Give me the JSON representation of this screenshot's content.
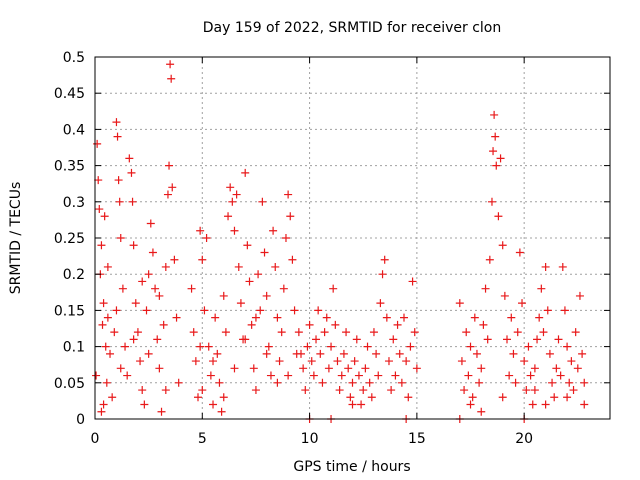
{
  "chart_data": {
    "type": "scatter",
    "title": "Day 159 of 2022, SRMTID for receiver clon",
    "xlabel": "GPS time / hours",
    "ylabel": "SRMTID / TECUs",
    "xlim": [
      0,
      24
    ],
    "ylim": [
      0,
      0.5
    ],
    "x_ticks": [
      "0",
      "5",
      "10",
      "15",
      "20"
    ],
    "y_ticks": [
      "0",
      "0.05",
      "0.1",
      "0.15",
      "0.2",
      "0.25",
      "0.3",
      "0.35",
      "0.4",
      "0.45",
      "0.5"
    ],
    "x_tick_values": [
      0,
      5,
      10,
      15,
      20
    ],
    "y_tick_values": [
      0,
      0.05,
      0.1,
      0.15,
      0.2,
      0.25,
      0.3,
      0.35,
      0.4,
      0.45,
      0.5
    ],
    "grid": true,
    "marker": "+",
    "color": "#e8191a",
    "series": [
      {
        "name": "",
        "points": [
          [
            0.05,
            0.06
          ],
          [
            0.1,
            0.38
          ],
          [
            0.15,
            0.33
          ],
          [
            0.2,
            0.29
          ],
          [
            0.25,
            0.2
          ],
          [
            0.3,
            0.24
          ],
          [
            0.35,
            0.13
          ],
          [
            0.4,
            0.16
          ],
          [
            0.45,
            0.28
          ],
          [
            0.5,
            0.1
          ],
          [
            0.55,
            0.05
          ],
          [
            0.6,
            0.14
          ],
          [
            0.7,
            0.09
          ],
          [
            0.8,
            0.03
          ],
          [
            0.9,
            0.12
          ],
          [
            1.0,
            0.41
          ],
          [
            1.05,
            0.39
          ],
          [
            1.1,
            0.33
          ],
          [
            1.15,
            0.3
          ],
          [
            1.2,
            0.25
          ],
          [
            1.3,
            0.18
          ],
          [
            1.4,
            0.1
          ],
          [
            1.5,
            0.06
          ],
          [
            1.6,
            0.36
          ],
          [
            1.7,
            0.34
          ],
          [
            1.75,
            0.3
          ],
          [
            1.8,
            0.24
          ],
          [
            1.9,
            0.16
          ],
          [
            2.0,
            0.12
          ],
          [
            2.1,
            0.08
          ],
          [
            2.2,
            0.04
          ],
          [
            2.3,
            0.02
          ],
          [
            2.4,
            0.15
          ],
          [
            2.5,
            0.2
          ],
          [
            2.6,
            0.27
          ],
          [
            2.7,
            0.23
          ],
          [
            2.8,
            0.18
          ],
          [
            2.9,
            0.11
          ],
          [
            3.0,
            0.07
          ],
          [
            3.1,
            0.01
          ],
          [
            3.2,
            0.13
          ],
          [
            3.3,
            0.21
          ],
          [
            3.4,
            0.31
          ],
          [
            3.45,
            0.35
          ],
          [
            3.5,
            0.49
          ],
          [
            3.55,
            0.47
          ],
          [
            3.6,
            0.32
          ],
          [
            3.7,
            0.22
          ],
          [
            3.8,
            0.14
          ],
          [
            3.9,
            0.05
          ],
          [
            0.3,
            0.01
          ],
          [
            0.4,
            0.02
          ],
          [
            1.2,
            0.07
          ],
          [
            1.8,
            0.11
          ],
          [
            2.5,
            0.09
          ],
          [
            3.0,
            0.17
          ],
          [
            0.6,
            0.21
          ],
          [
            1.0,
            0.15
          ],
          [
            2.2,
            0.19
          ],
          [
            3.3,
            0.04
          ],
          [
            4.5,
            0.18
          ],
          [
            4.6,
            0.12
          ],
          [
            4.7,
            0.08
          ],
          [
            4.8,
            0.03
          ],
          [
            4.9,
            0.26
          ],
          [
            5.0,
            0.22
          ],
          [
            5.1,
            0.15
          ],
          [
            5.2,
            0.25
          ],
          [
            5.3,
            0.1
          ],
          [
            5.4,
            0.06
          ],
          [
            5.5,
            0.02
          ],
          [
            5.6,
            0.14
          ],
          [
            5.7,
            0.09
          ],
          [
            5.8,
            0.05
          ],
          [
            5.9,
            0.01
          ],
          [
            6.0,
            0.17
          ],
          [
            6.1,
            0.12
          ],
          [
            6.2,
            0.28
          ],
          [
            6.3,
            0.32
          ],
          [
            6.4,
            0.3
          ],
          [
            6.5,
            0.26
          ],
          [
            6.6,
            0.31
          ],
          [
            6.7,
            0.21
          ],
          [
            6.8,
            0.16
          ],
          [
            6.9,
            0.11
          ],
          [
            7.0,
            0.34
          ],
          [
            7.1,
            0.24
          ],
          [
            7.2,
            0.19
          ],
          [
            7.3,
            0.13
          ],
          [
            7.4,
            0.07
          ],
          [
            7.5,
            0.04
          ],
          [
            7.6,
            0.2
          ],
          [
            7.7,
            0.15
          ],
          [
            7.8,
            0.3
          ],
          [
            7.9,
            0.23
          ],
          [
            8.0,
            0.17
          ],
          [
            8.1,
            0.1
          ],
          [
            8.2,
            0.06
          ],
          [
            8.3,
            0.26
          ],
          [
            8.4,
            0.21
          ],
          [
            8.5,
            0.14
          ],
          [
            8.6,
            0.08
          ],
          [
            8.7,
            0.12
          ],
          [
            8.8,
            0.18
          ],
          [
            8.9,
            0.25
          ],
          [
            9.0,
            0.31
          ],
          [
            9.1,
            0.28
          ],
          [
            9.2,
            0.22
          ],
          [
            9.3,
            0.15
          ],
          [
            9.4,
            0.09
          ],
          [
            5.0,
            0.04
          ],
          [
            5.5,
            0.08
          ],
          [
            6.0,
            0.03
          ],
          [
            6.5,
            0.07
          ],
          [
            7.0,
            0.11
          ],
          [
            7.5,
            0.14
          ],
          [
            8.0,
            0.09
          ],
          [
            8.5,
            0.05
          ],
          [
            9.0,
            0.06
          ],
          [
            4.9,
            0.1
          ],
          [
            9.5,
            0.12
          ],
          [
            9.6,
            0.09
          ],
          [
            9.7,
            0.07
          ],
          [
            9.8,
            0.04
          ],
          [
            9.9,
            0.1
          ],
          [
            10.0,
            0.13
          ],
          [
            10.1,
            0.08
          ],
          [
            10.2,
            0.06
          ],
          [
            10.3,
            0.11
          ],
          [
            10.4,
            0.15
          ],
          [
            10.5,
            0.09
          ],
          [
            10.6,
            0.05
          ],
          [
            10.7,
            0.12
          ],
          [
            10.8,
            0.14
          ],
          [
            10.9,
            0.07
          ],
          [
            11.0,
            0.1
          ],
          [
            11.1,
            0.18
          ],
          [
            11.2,
            0.13
          ],
          [
            11.3,
            0.08
          ],
          [
            11.4,
            0.04
          ],
          [
            11.5,
            0.06
          ],
          [
            11.6,
            0.09
          ],
          [
            11.7,
            0.12
          ],
          [
            11.8,
            0.07
          ],
          [
            11.9,
            0.03
          ],
          [
            12.0,
            0.05
          ],
          [
            12.1,
            0.08
          ],
          [
            12.2,
            0.11
          ],
          [
            12.3,
            0.06
          ],
          [
            12.4,
            0.02
          ],
          [
            12.5,
            0.04
          ],
          [
            12.6,
            0.07
          ],
          [
            12.7,
            0.1
          ],
          [
            12.8,
            0.05
          ],
          [
            12.9,
            0.03
          ],
          [
            13.0,
            0.12
          ],
          [
            13.1,
            0.09
          ],
          [
            13.2,
            0.06
          ],
          [
            13.3,
            0.16
          ],
          [
            13.4,
            0.2
          ],
          [
            13.5,
            0.22
          ],
          [
            13.6,
            0.14
          ],
          [
            13.7,
            0.08
          ],
          [
            13.8,
            0.04
          ],
          [
            13.9,
            0.11
          ],
          [
            14.0,
            0.06
          ],
          [
            14.1,
            0.13
          ],
          [
            14.2,
            0.09
          ],
          [
            14.3,
            0.05
          ],
          [
            14.4,
            0.14
          ],
          [
            14.5,
            0.08
          ],
          [
            14.6,
            0.03
          ],
          [
            14.7,
            0.1
          ],
          [
            14.8,
            0.19
          ],
          [
            14.9,
            0.12
          ],
          [
            15.0,
            0.07
          ],
          [
            10.0,
            0.0
          ],
          [
            11.0,
            0.0
          ],
          [
            14.5,
            0.0
          ],
          [
            12.0,
            0.02
          ],
          [
            17.0,
            0.16
          ],
          [
            17.1,
            0.08
          ],
          [
            17.2,
            0.04
          ],
          [
            17.3,
            0.12
          ],
          [
            17.4,
            0.06
          ],
          [
            17.5,
            0.1
          ],
          [
            17.6,
            0.03
          ],
          [
            17.7,
            0.14
          ],
          [
            17.8,
            0.09
          ],
          [
            17.9,
            0.05
          ],
          [
            18.0,
            0.07
          ],
          [
            18.1,
            0.13
          ],
          [
            18.2,
            0.18
          ],
          [
            18.3,
            0.11
          ],
          [
            18.4,
            0.22
          ],
          [
            18.5,
            0.3
          ],
          [
            18.55,
            0.37
          ],
          [
            18.6,
            0.42
          ],
          [
            18.65,
            0.39
          ],
          [
            18.7,
            0.35
          ],
          [
            18.8,
            0.28
          ],
          [
            18.9,
            0.36
          ],
          [
            19.0,
            0.24
          ],
          [
            19.1,
            0.17
          ],
          [
            19.2,
            0.11
          ],
          [
            19.3,
            0.06
          ],
          [
            19.4,
            0.14
          ],
          [
            19.5,
            0.09
          ],
          [
            19.6,
            0.05
          ],
          [
            19.7,
            0.12
          ],
          [
            19.8,
            0.23
          ],
          [
            19.9,
            0.16
          ],
          [
            20.0,
            0.08
          ],
          [
            20.1,
            0.04
          ],
          [
            20.2,
            0.1
          ],
          [
            20.3,
            0.06
          ],
          [
            20.4,
            0.02
          ],
          [
            20.5,
            0.07
          ],
          [
            20.6,
            0.11
          ],
          [
            20.7,
            0.14
          ],
          [
            20.8,
            0.18
          ],
          [
            20.9,
            0.12
          ],
          [
            21.0,
            0.21
          ],
          [
            21.1,
            0.15
          ],
          [
            21.2,
            0.09
          ],
          [
            21.3,
            0.05
          ],
          [
            21.4,
            0.03
          ],
          [
            21.5,
            0.07
          ],
          [
            21.6,
            0.11
          ],
          [
            21.7,
            0.06
          ],
          [
            21.8,
            0.21
          ],
          [
            21.9,
            0.15
          ],
          [
            22.0,
            0.1
          ],
          [
            22.1,
            0.05
          ],
          [
            22.2,
            0.08
          ],
          [
            22.3,
            0.04
          ],
          [
            22.4,
            0.12
          ],
          [
            22.5,
            0.07
          ],
          [
            22.6,
            0.17
          ],
          [
            22.7,
            0.09
          ],
          [
            22.8,
            0.05
          ],
          [
            22.8,
            0.02
          ],
          [
            17.0,
            0.0
          ],
          [
            18.0,
            0.01
          ],
          [
            20.0,
            0.0
          ],
          [
            21.0,
            0.02
          ],
          [
            22.0,
            0.03
          ],
          [
            17.5,
            0.02
          ],
          [
            19.0,
            0.03
          ],
          [
            20.5,
            0.04
          ]
        ]
      }
    ]
  }
}
